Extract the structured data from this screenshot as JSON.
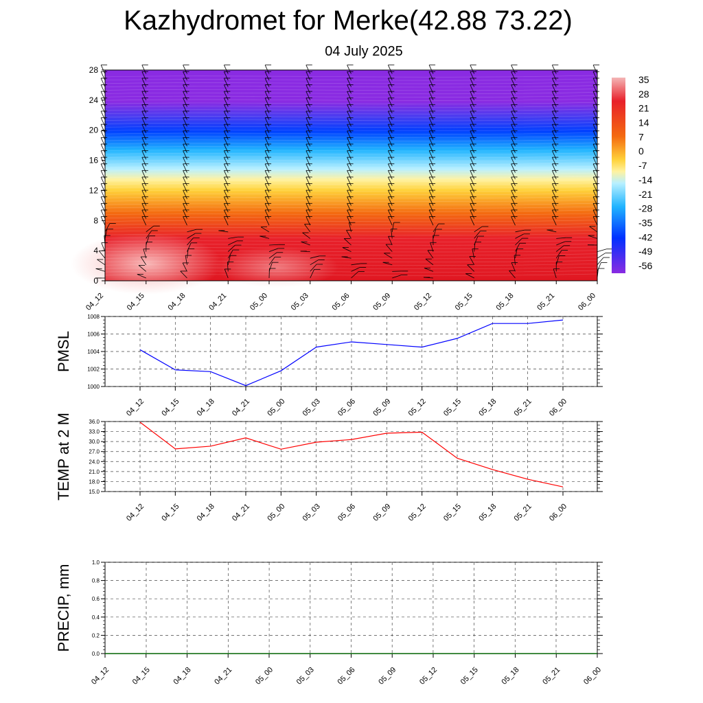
{
  "title": "Kazhydromet for Merke(42.88 73.22)",
  "subtitle": "04 July 2025",
  "chart_data": [
    {
      "type": "heatmap",
      "description_axis": "time vs height",
      "x_ticks": [
        "04_12",
        "04_15",
        "04_18",
        "04_21",
        "05_00",
        "05_03",
        "05_06",
        "05_09",
        "05_12",
        "05_15",
        "05_18",
        "05_21",
        "06_00"
      ],
      "y_ticks": [
        0,
        4,
        8,
        12,
        16,
        20,
        24,
        28
      ],
      "ylim": [
        0,
        28
      ],
      "colorbar_labels": [
        "35",
        "28",
        "21",
        "14",
        "7",
        "0",
        "-7",
        "-14",
        "-21",
        "-28",
        "-35",
        "-42",
        "-49",
        "-56"
      ],
      "colormap": [
        "#f4b6b6",
        "#e8202a",
        "#f5a200",
        "#fff2a0",
        "#b8f0ff",
        "#00a8ff",
        "#0030ff",
        "#8a2be2"
      ]
    },
    {
      "type": "line",
      "ylabel": "PMSL",
      "categories": [
        "04_12",
        "04_15",
        "04_18",
        "04_21",
        "05_00",
        "05_03",
        "05_06",
        "05_09",
        "05_12",
        "05_15",
        "05_18",
        "05_21",
        "06_00"
      ],
      "values": [
        1004.2,
        1001.9,
        1001.7,
        1000.1,
        1001.8,
        1004.5,
        1005.1,
        1004.8,
        1004.5,
        1005.5,
        1007.2,
        1007.2,
        1007.6
      ],
      "ylim": [
        1000,
        1008
      ],
      "y_ticks": [
        "1000",
        "1002",
        "1004",
        "1006",
        "1008"
      ],
      "color": "#0000ff"
    },
    {
      "type": "line",
      "ylabel": "TEMP at 2 M",
      "categories": [
        "04_12",
        "04_15",
        "04_18",
        "04_21",
        "05_00",
        "05_03",
        "05_06",
        "05_09",
        "05_12",
        "05_15",
        "05_18",
        "05_21",
        "06_00"
      ],
      "values": [
        35.8,
        27.8,
        28.6,
        31.1,
        27.7,
        29.8,
        30.6,
        32.5,
        32.8,
        25.0,
        21.6,
        18.7,
        16.4
      ],
      "ylim": [
        15,
        36
      ],
      "y_ticks": [
        "15.0",
        "18.0",
        "21.0",
        "24.0",
        "27.0",
        "30.0",
        "33.0",
        "36.0"
      ],
      "color": "#ff0000"
    },
    {
      "type": "line",
      "ylabel": "PRECIP, mm",
      "categories": [
        "04_12",
        "04_15",
        "04_18",
        "04_21",
        "05_00",
        "05_03",
        "05_06",
        "05_09",
        "05_12",
        "05_15",
        "05_18",
        "05_21",
        "06_00"
      ],
      "values": [
        0,
        0,
        0,
        0,
        0,
        0,
        0,
        0,
        0,
        0,
        0,
        0,
        0
      ],
      "ylim": [
        0,
        1
      ],
      "y_ticks": [
        "0.0",
        "0.2",
        "0.4",
        "0.6",
        "0.8",
        "1.0"
      ],
      "color": "#006400"
    }
  ]
}
